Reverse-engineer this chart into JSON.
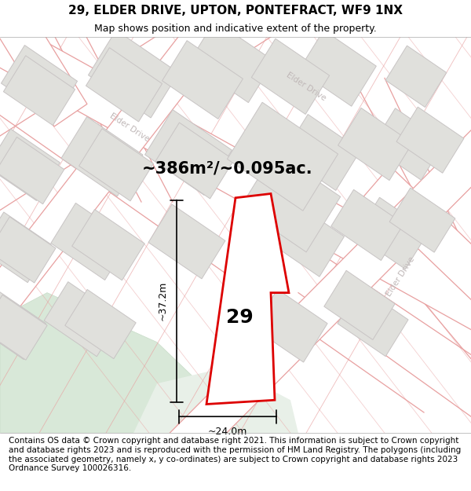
{
  "title": "29, ELDER DRIVE, UPTON, PONTEFRACT, WF9 1NX",
  "subtitle": "Map shows position and indicative extent of the property.",
  "footer": "Contains OS data © Crown copyright and database right 2021. This information is subject to Crown copyright and database rights 2023 and is reproduced with the permission of HM Land Registry. The polygons (including the associated geometry, namely x, y co-ordinates) are subject to Crown copyright and database rights 2023 Ordnance Survey 100026316.",
  "area_label": "~386m²/~0.095ac.",
  "width_label": "~24.0m",
  "height_label": "~37.2m",
  "number_label": "29",
  "map_bg": "#f7f7f5",
  "road_line_color": "#e8a0a0",
  "building_face": "#e0e0dc",
  "building_edge": "#c8c4c4",
  "street_label_color": "#c0b8b8",
  "red_outline": "#dd0000",
  "green_area_color": "#d8e8d8",
  "green_area_edge": "#c8dcc8",
  "title_fontsize": 11,
  "subtitle_fontsize": 9,
  "footer_fontsize": 7.5,
  "area_fontsize": 15,
  "dim_fontsize": 9,
  "number_fontsize": 18
}
